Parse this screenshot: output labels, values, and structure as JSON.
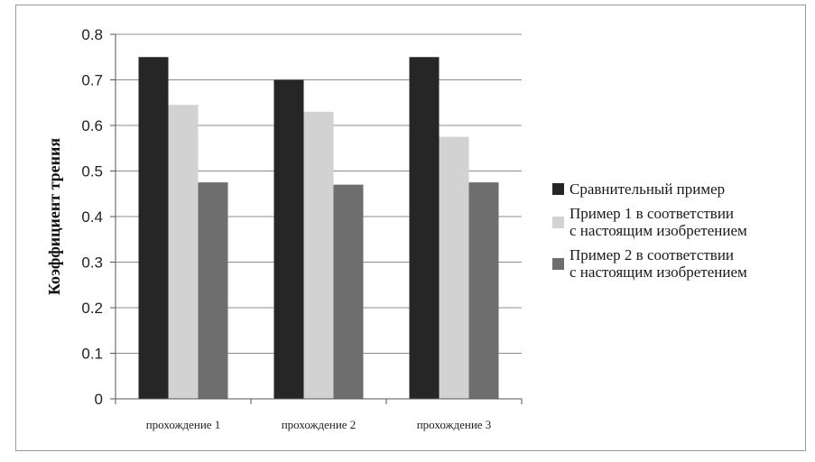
{
  "chart_data": {
    "type": "bar",
    "categories": [
      "прохождение 1",
      "прохождение 2",
      "прохождение 3"
    ],
    "series": [
      {
        "name": "Сравнительный пример",
        "values": [
          0.75,
          0.7,
          0.75
        ],
        "color": "#262626"
      },
      {
        "name": "Пример 1 в соответствии\nс настоящим изобретением",
        "values": [
          0.645,
          0.63,
          0.575
        ],
        "color": "#d2d2d2"
      },
      {
        "name": "Пример 2 в соответствии\nс настоящим изобретением",
        "values": [
          0.475,
          0.47,
          0.475
        ],
        "color": "#6e6e6e"
      }
    ],
    "title": "",
    "xlabel": "",
    "ylabel": "Коэффициент трения",
    "ylim": [
      0,
      0.8
    ],
    "yticks": [
      "0",
      "0.1",
      "0.2",
      "0.3",
      "0.4",
      "0.5",
      "0.6",
      "0.7",
      "0.8"
    ],
    "grid": true,
    "legend_position": "right"
  }
}
